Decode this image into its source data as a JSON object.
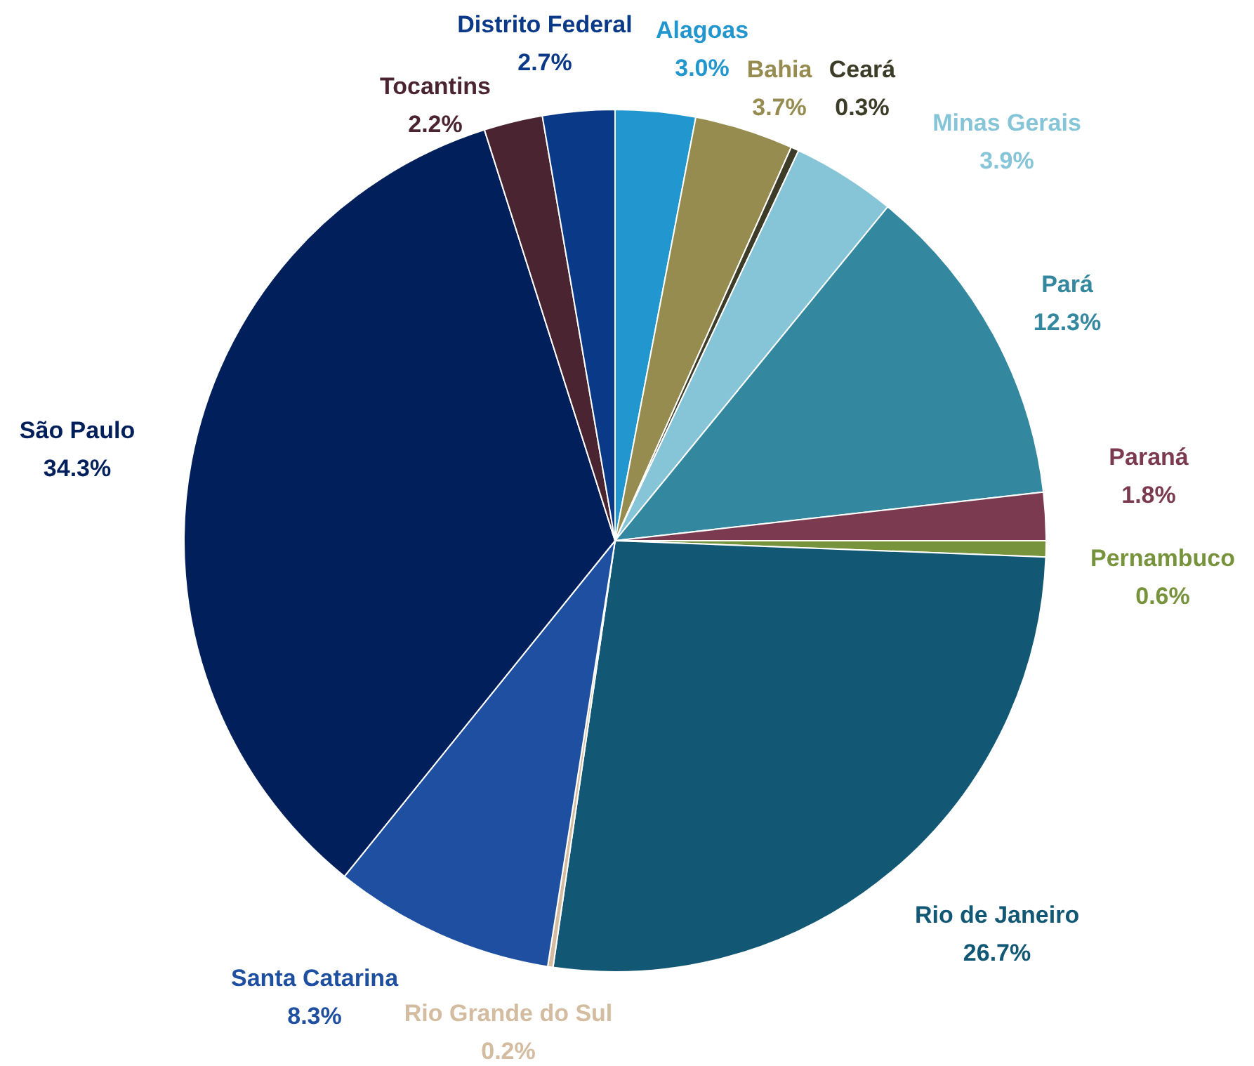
{
  "chart_data": {
    "type": "pie",
    "categories": [
      "Alagoas",
      "Bahia",
      "Ceará",
      "Minas Gerais",
      "Pará",
      "Paraná",
      "Pernambuco",
      "Rio de Janeiro",
      "Rio Grande do Sul",
      "Santa Catarina",
      "São Paulo",
      "Tocantins",
      "Distrito Federal"
    ],
    "values": [
      3.0,
      3.7,
      0.3,
      3.9,
      12.3,
      1.8,
      0.6,
      26.7,
      0.2,
      8.3,
      34.3,
      2.2,
      2.7
    ],
    "value_labels": [
      "3.0%",
      "3.7%",
      "0.3%",
      "3.9%",
      "12.3%",
      "1.8%",
      "0.6%",
      "26.7%",
      "0.2%",
      "8.3%",
      "34.3%",
      "2.2%",
      "2.7%"
    ],
    "colors": [
      "#2196cf",
      "#968c50",
      "#3c3c28",
      "#86c5d8",
      "#33879e",
      "#7b3a50",
      "#77933c",
      "#125874",
      "#d3bca0",
      "#1f4fa0",
      "#001f5b",
      "#4a2430",
      "#0a3a87"
    ]
  }
}
